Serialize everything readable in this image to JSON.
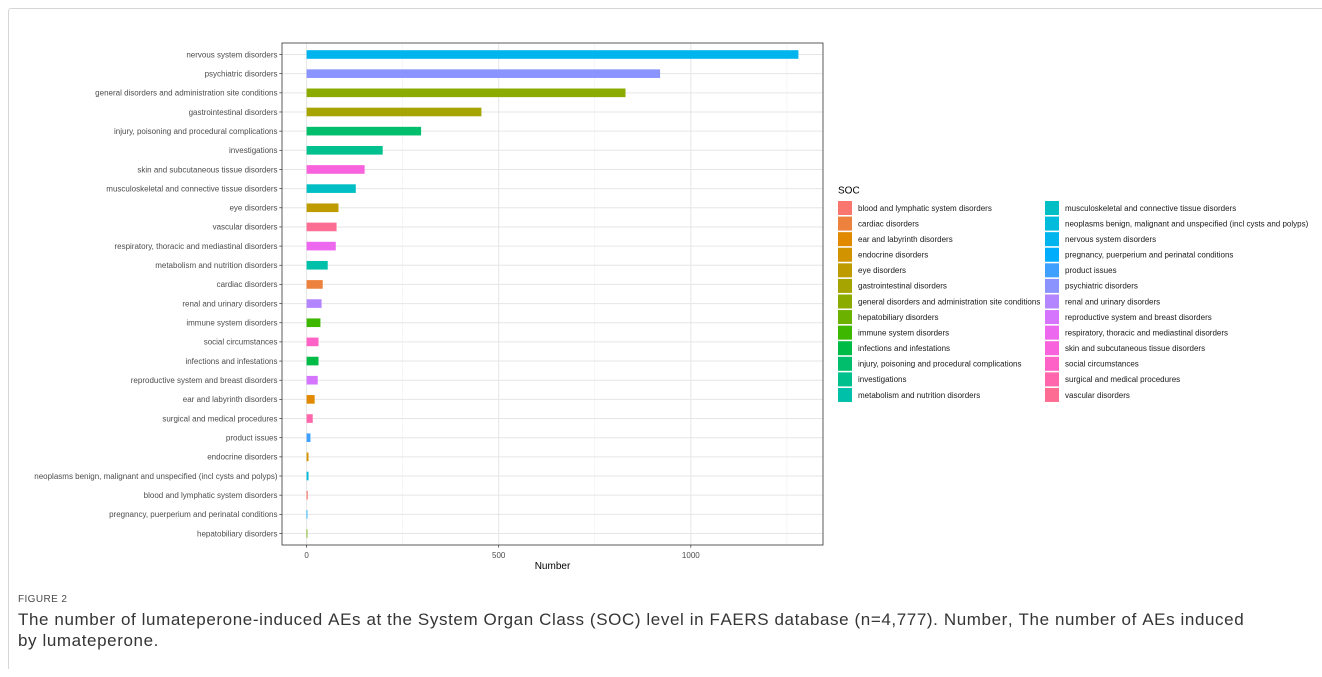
{
  "figure": {
    "label": "FIGURE 2",
    "caption": "The number of lumateperone-induced AEs at the System Organ Class (SOC) level in FAERS database (n=4,777). Number, The number of AEs induced by lumateperone."
  },
  "chart_data": {
    "type": "bar",
    "categories": [
      "nervous system disorders",
      "psychiatric disorders",
      "general disorders and administration site conditions",
      "gastrointestinal disorders",
      "injury, poisoning and procedural complications",
      "investigations",
      "skin and subcutaneous tissue disorders",
      "musculoskeletal and connective tissue disorders",
      "eye disorders",
      "vascular disorders",
      "respiratory, thoracic and mediastinal disorders",
      "metabolism and nutrition disorders",
      "cardiac disorders",
      "renal and urinary disorders",
      "immune system disorders",
      "social circumstances",
      "infections and infestations",
      "reproductive system and breast disorders",
      "ear and labyrinth disorders",
      "surgical and medical procedures",
      "product issues",
      "endocrine disorders",
      "neoplasms benign, malignant and unspecified (incl cysts and polyps)",
      "blood and lymphatic system disorders",
      "pregnancy, puerperium and perinatal conditions",
      "hepatobiliary disorders"
    ],
    "values": [
      1280,
      920,
      830,
      455,
      298,
      198,
      151,
      128,
      83,
      78,
      76,
      55,
      42,
      39,
      36,
      31,
      31,
      29,
      21,
      16,
      10,
      5,
      5,
      3,
      2,
      2
    ],
    "xlabel": "Number",
    "xlim": [
      -64,
      1344
    ],
    "xticks": [
      0,
      500,
      1000
    ],
    "grid": true,
    "legend": {
      "title": "SOC",
      "position": "right",
      "items": [
        {
          "label": "blood and lymphatic system disorders",
          "color": "#F8766D"
        },
        {
          "label": "cardiac disorders",
          "color": "#ED813E"
        },
        {
          "label": "ear and labyrinth disorders",
          "color": "#E18A00"
        },
        {
          "label": "endocrine disorders",
          "color": "#D19300"
        },
        {
          "label": "eye disorders",
          "color": "#BE9C00"
        },
        {
          "label": "gastrointestinal disorders",
          "color": "#A6A400"
        },
        {
          "label": "general disorders and administration site conditions",
          "color": "#8CAB00"
        },
        {
          "label": "hepatobiliary disorders",
          "color": "#6BB100"
        },
        {
          "label": "immune system disorders",
          "color": "#3DB700"
        },
        {
          "label": "infections and infestations",
          "color": "#00BB45"
        },
        {
          "label": "injury, poisoning and procedural complications",
          "color": "#00BE6C"
        },
        {
          "label": "investigations",
          "color": "#00C08E"
        },
        {
          "label": "metabolism and nutrition disorders",
          "color": "#00C0A9"
        },
        {
          "label": "musculoskeletal and connective tissue disorders",
          "color": "#00BFC4"
        },
        {
          "label": "neoplasms benign, malignant and unspecified (incl cysts and polyps)",
          "color": "#00BBDB"
        },
        {
          "label": "nervous system disorders",
          "color": "#00B5EE"
        },
        {
          "label": "pregnancy, puerperium and perinatal conditions",
          "color": "#00ACFC"
        },
        {
          "label": "product issues",
          "color": "#3FA0FF"
        },
        {
          "label": "psychiatric disorders",
          "color": "#8B93FF"
        },
        {
          "label": "renal and urinary disorders",
          "color": "#B385FF"
        },
        {
          "label": "reproductive system and breast disorders",
          "color": "#D575FE"
        },
        {
          "label": "respiratory, thoracic and mediastinal disorders",
          "color": "#EC69EF"
        },
        {
          "label": "skin and subcutaneous tissue disorders",
          "color": "#F962DD"
        },
        {
          "label": "social circumstances",
          "color": "#FF62C7"
        },
        {
          "label": "surgical and medical procedures",
          "color": "#FF66AC"
        },
        {
          "label": "vascular disorders",
          "color": "#FD6C93"
        }
      ]
    }
  }
}
